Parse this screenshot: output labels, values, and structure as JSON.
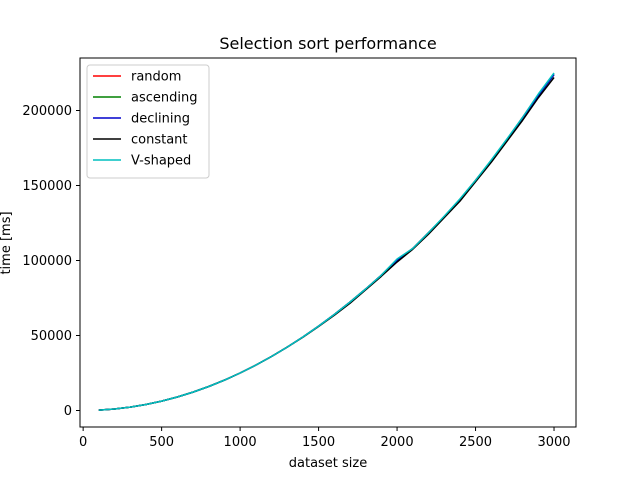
{
  "chart_data": {
    "type": "line",
    "title": "Selection sort performance",
    "xlabel": "dataset size",
    "ylabel": "time [ms]",
    "xlim": [
      -20,
      3140
    ],
    "ylim": [
      -11000,
      235000
    ],
    "xticks": [
      0,
      500,
      1000,
      1500,
      2000,
      2500,
      3000
    ],
    "xtick_labels": [
      "0",
      "500",
      "1000",
      "1500",
      "2000",
      "2500",
      "3000"
    ],
    "yticks": [
      0,
      50000,
      100000,
      150000,
      200000
    ],
    "ytick_labels": [
      "0",
      "50000",
      "100000",
      "150000",
      "200000"
    ],
    "grid": false,
    "legend_position": "upper-left",
    "x": [
      100,
      200,
      300,
      400,
      500,
      600,
      700,
      800,
      900,
      1000,
      1100,
      1200,
      1300,
      1400,
      1500,
      1600,
      1700,
      1800,
      1900,
      2000,
      2100,
      2200,
      2300,
      2400,
      2500,
      2600,
      2700,
      2800,
      2900,
      3000
    ],
    "series": [
      {
        "name": "random",
        "color": "#ff0000",
        "values": [
          250,
          1000,
          2250,
          4000,
          6250,
          9000,
          12250,
          16000,
          20250,
          25000,
          30250,
          36000,
          42250,
          49000,
          56250,
          64000,
          72250,
          81000,
          90250,
          100500,
          108000,
          118500,
          129000,
          140500,
          153500,
          166500,
          180500,
          195500,
          210500,
          224000
        ]
      },
      {
        "name": "ascending",
        "color": "#008000",
        "values": [
          250,
          1000,
          2250,
          4000,
          6250,
          9000,
          12250,
          16000,
          20250,
          25000,
          30250,
          36000,
          42250,
          49000,
          56250,
          64000,
          72250,
          81000,
          90250,
          100000,
          108000,
          118500,
          129000,
          140500,
          153000,
          166500,
          180500,
          195000,
          210000,
          224000
        ]
      },
      {
        "name": "declining",
        "color": "#0000cc",
        "values": [
          250,
          1000,
          2250,
          4000,
          6250,
          9000,
          12250,
          16000,
          20250,
          25000,
          30250,
          36000,
          42250,
          49000,
          56250,
          64000,
          72250,
          81000,
          90250,
          100000,
          108000,
          118500,
          129000,
          140500,
          153000,
          166500,
          180500,
          195000,
          210000,
          224000
        ]
      },
      {
        "name": "constant",
        "color": "#000000",
        "values": [
          250,
          1000,
          2250,
          4000,
          6250,
          9000,
          12250,
          16000,
          20250,
          25000,
          30250,
          36000,
          42250,
          48800,
          56000,
          63500,
          71500,
          80500,
          89500,
          99000,
          107500,
          117500,
          128500,
          139500,
          152500,
          165500,
          179500,
          193500,
          208500,
          222000
        ]
      },
      {
        "name": "V-shaped",
        "color": "#00bfbf",
        "values": [
          250,
          1000,
          2250,
          4000,
          6250,
          9000,
          12250,
          16000,
          20250,
          25000,
          30250,
          36000,
          42250,
          49000,
          56250,
          64000,
          72250,
          81000,
          90250,
          101000,
          108000,
          118500,
          129500,
          141000,
          153500,
          167000,
          181000,
          195500,
          211000,
          225000
        ]
      }
    ]
  }
}
